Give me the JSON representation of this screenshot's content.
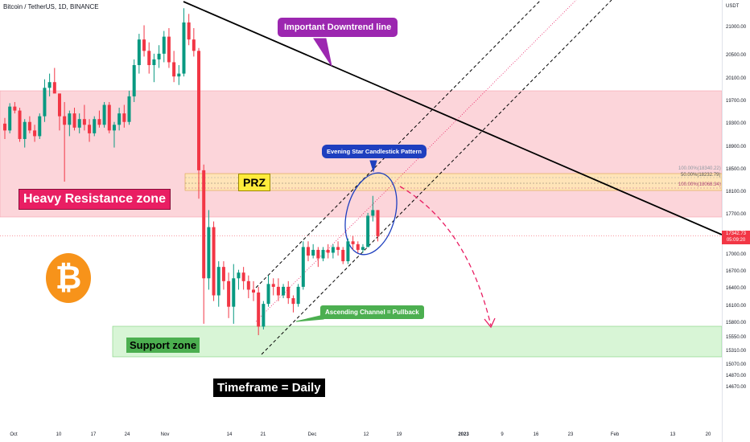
{
  "header": {
    "symbol": "Bitcoin / TetherUS, 1D, BINANCE"
  },
  "chart_data": {
    "type": "candlestick",
    "symbol": "Bitcoin / TetherUS",
    "interval": "1D",
    "exchange": "BINANCE",
    "price_axis": {
      "unit": "USDT",
      "ticks": [
        "21000.00",
        "20500.00",
        "20100.00",
        "19700.00",
        "19300.00",
        "18900.00",
        "18500.00",
        "18100.00",
        "17700.00",
        "17342.73",
        "17000.00",
        "16700.00",
        "16400.00",
        "16100.00",
        "15800.00",
        "15550.00",
        "15310.00",
        "15070.00",
        "14870.00",
        "14670.00"
      ]
    },
    "time_axis": {
      "ticks": [
        "Oct",
        "10",
        "17",
        "24",
        "Nov",
        "14",
        "21",
        "Dec",
        "12",
        "19",
        "2023",
        "9",
        "16",
        "23",
        "Feb",
        "13",
        "20"
      ]
    },
    "current_price": {
      "value": "17342.73",
      "countdown": "05:09:20",
      "color": "#f23645"
    },
    "candles": [
      [
        19320,
        19420,
        19050,
        19200
      ],
      [
        19200,
        19680,
        19150,
        19620
      ],
      [
        19620,
        19700,
        19500,
        19550
      ],
      [
        19550,
        19600,
        19000,
        19050
      ],
      [
        19050,
        19400,
        18900,
        19350
      ],
      [
        19350,
        19450,
        19150,
        19200
      ],
      [
        19200,
        19300,
        19000,
        19100
      ],
      [
        19100,
        19500,
        19050,
        19450
      ],
      [
        19450,
        20100,
        19350,
        19950
      ],
      [
        19950,
        20200,
        19800,
        20050
      ],
      [
        20050,
        20300,
        19900,
        19850
      ],
      [
        19850,
        19850,
        19200,
        19450
      ],
      [
        19450,
        19700,
        18300,
        19300
      ],
      [
        19300,
        19550,
        19100,
        19500
      ],
      [
        19500,
        19600,
        19200,
        19250
      ],
      [
        19250,
        19500,
        19150,
        19400
      ],
      [
        19400,
        19650,
        19200,
        19300
      ],
      [
        19300,
        19400,
        19000,
        19150
      ],
      [
        19150,
        19450,
        19100,
        19400
      ],
      [
        19400,
        19550,
        19250,
        19300
      ],
      [
        19300,
        19700,
        19250,
        19650
      ],
      [
        19650,
        19700,
        19150,
        19200
      ],
      [
        19200,
        19350,
        18900,
        19300
      ],
      [
        19300,
        19600,
        19200,
        19500
      ],
      [
        19500,
        19650,
        19250,
        19350
      ],
      [
        19350,
        19900,
        19300,
        19800
      ],
      [
        19800,
        20450,
        19700,
        20350
      ],
      [
        20350,
        20900,
        20200,
        20800
      ],
      [
        20800,
        21050,
        20500,
        20600
      ],
      [
        20600,
        20750,
        20200,
        20350
      ],
      [
        20350,
        20550,
        20050,
        20450
      ],
      [
        20450,
        20700,
        20300,
        20550
      ],
      [
        20550,
        20950,
        20400,
        20850
      ],
      [
        20850,
        21000,
        20300,
        20400
      ],
      [
        20400,
        20600,
        20050,
        20150
      ],
      [
        20150,
        20350,
        20000,
        20200
      ],
      [
        20200,
        21350,
        20150,
        21100
      ],
      [
        21100,
        21250,
        20700,
        20800
      ],
      [
        20800,
        21000,
        20500,
        20600
      ],
      [
        20600,
        20650,
        18000,
        18500
      ],
      [
        18500,
        18600,
        15800,
        16600
      ],
      [
        16600,
        17800,
        16400,
        17500
      ],
      [
        17500,
        17600,
        16200,
        16300
      ],
      [
        16300,
        16900,
        16100,
        16800
      ],
      [
        16800,
        16900,
        16400,
        16550
      ],
      [
        16550,
        16700,
        15900,
        16100
      ],
      [
        16100,
        16850,
        15800,
        16600
      ],
      [
        16600,
        16750,
        16400,
        16700
      ],
      [
        16700,
        16800,
        16400,
        16550
      ],
      [
        16550,
        16650,
        16250,
        16400
      ],
      [
        16400,
        16550,
        16200,
        16350
      ],
      [
        16350,
        16450,
        15600,
        15750
      ],
      [
        15750,
        16200,
        15700,
        16150
      ],
      [
        16150,
        16650,
        16100,
        16500
      ],
      [
        16500,
        16600,
        16300,
        16450
      ],
      [
        16450,
        16600,
        16200,
        16300
      ],
      [
        16300,
        16500,
        16250,
        16450
      ],
      [
        16450,
        16550,
        16150,
        16250
      ],
      [
        16250,
        16300,
        16000,
        16150
      ],
      [
        16150,
        16500,
        16100,
        16450
      ],
      [
        16450,
        17250,
        16400,
        17150
      ],
      [
        17150,
        17250,
        16900,
        17000
      ],
      [
        17000,
        17200,
        16950,
        17100
      ],
      [
        17100,
        17150,
        16800,
        16950
      ],
      [
        16950,
        17150,
        16900,
        17100
      ],
      [
        17100,
        17200,
        16950,
        17050
      ],
      [
        17050,
        17200,
        16950,
        17150
      ],
      [
        17150,
        17250,
        17000,
        17100
      ],
      [
        17100,
        17150,
        16850,
        16900
      ],
      [
        16900,
        17300,
        16850,
        17250
      ],
      [
        17250,
        17350,
        17100,
        17200
      ],
      [
        17200,
        17250,
        17050,
        17100
      ],
      [
        17100,
        17200,
        17050,
        17150
      ],
      [
        17150,
        17750,
        17150,
        17700
      ],
      [
        17700,
        18050,
        17600,
        17800
      ],
      [
        17800,
        17800,
        17250,
        17343
      ]
    ]
  },
  "annotations": {
    "downtrend": "Important Downtrend line",
    "heavy_resistance": "Heavy Resistance zone",
    "prz": "PRZ",
    "evening_star": "Evening Star Candlestick Pattern",
    "channel": "Ascending Channel = Pullback",
    "support": "Support zone",
    "timeframe": "Timeframe = Daily",
    "fib_1": "100.00%(18340.22)",
    "fib_2": "50.00%(18232.79)",
    "fib_3": "100.00%(18068.34)"
  },
  "colors": {
    "up": "#089981",
    "down": "#f23645",
    "resistance_zone": "#fcd5da",
    "support_zone": "#d8f5d6",
    "prz_zone": "#ffe4b8",
    "channel": "#000000",
    "projection": "#e91e63",
    "bitcoin_logo": "#f7931a"
  },
  "logo_symbol": "₿"
}
